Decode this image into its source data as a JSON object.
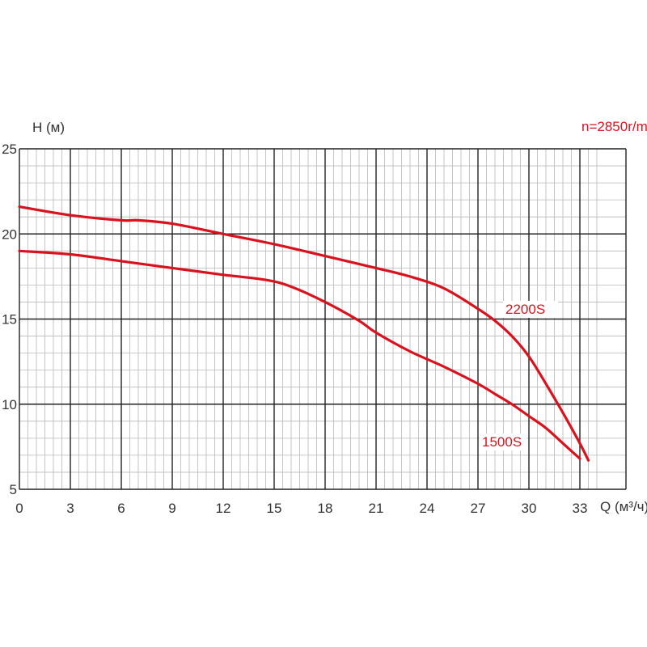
{
  "chart_data": {
    "type": "line",
    "title": "",
    "annotation": "n=2850r/m",
    "xlabel": "Q (м³/ч)",
    "ylabel": "H (м)",
    "xlim": [
      0,
      34
    ],
    "ylim": [
      5,
      25
    ],
    "x_ticks": [
      0,
      3,
      6,
      9,
      12,
      15,
      18,
      21,
      24,
      27,
      30,
      33
    ],
    "y_ticks": [
      5,
      10,
      15,
      20,
      25
    ],
    "x_tick_labels": [
      "0",
      "3",
      "6",
      "9",
      "12",
      "15",
      "18",
      "21",
      "24",
      "27",
      "30",
      "33"
    ],
    "y_tick_labels": [
      "5",
      "10",
      "15",
      "20",
      "25"
    ],
    "grid": true,
    "series": [
      {
        "name": "2200S",
        "color": "#d9121e",
        "x": [
          0,
          3,
          6,
          7,
          9,
          12,
          15,
          18,
          21,
          23,
          25,
          27,
          28,
          29,
          30,
          31,
          32,
          33,
          33.5
        ],
        "y": [
          21.6,
          21.1,
          20.8,
          20.8,
          20.6,
          20.0,
          19.4,
          18.7,
          18.0,
          17.5,
          16.8,
          15.6,
          14.9,
          14.0,
          12.8,
          11.2,
          9.5,
          7.7,
          6.7
        ]
      },
      {
        "name": "1500S",
        "color": "#d9121e",
        "x": [
          0,
          3,
          6,
          9,
          12,
          14.5,
          16,
          18,
          20,
          21,
          23,
          25,
          27,
          28,
          29,
          30,
          31,
          32,
          33
        ],
        "y": [
          19.0,
          18.8,
          18.4,
          18.0,
          17.6,
          17.3,
          16.9,
          16.0,
          14.9,
          14.2,
          13.1,
          12.2,
          11.2,
          10.6,
          10.0,
          9.3,
          8.6,
          7.7,
          6.8
        ]
      }
    ]
  }
}
